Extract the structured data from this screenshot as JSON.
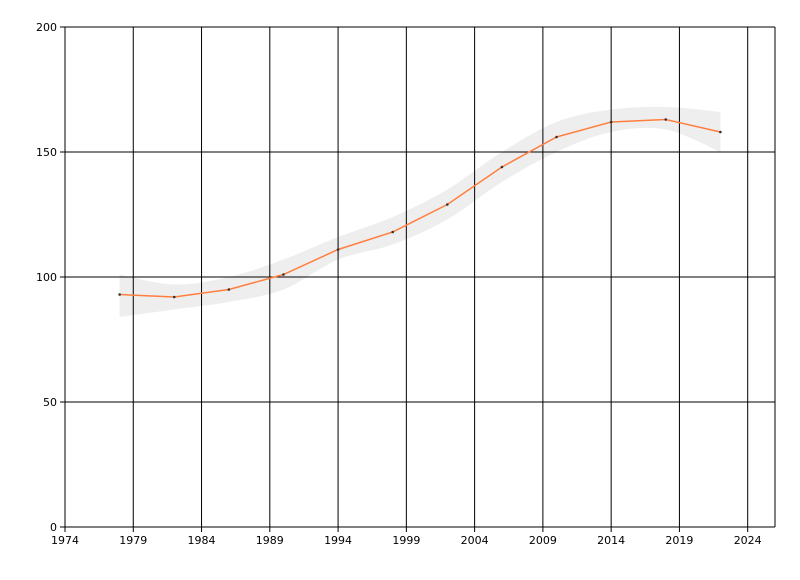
{
  "chart_data": {
    "type": "line",
    "x": [
      1978,
      1982,
      1986,
      1990,
      1994,
      1998,
      2002,
      2006,
      2010,
      2014,
      2018,
      2022
    ],
    "series": [
      {
        "color": "#ff7f3f",
        "values": [
          93,
          92,
          95,
          101,
          111,
          118,
          129,
          144,
          156,
          162,
          163,
          158
        ]
      }
    ],
    "band": {
      "color": "#eeeeee",
      "upper": [
        101,
        97,
        100,
        107,
        116,
        124,
        135,
        150,
        162,
        167,
        168,
        166
      ],
      "lower": [
        84,
        87,
        90,
        95,
        107,
        113,
        123,
        138,
        150,
        158,
        159,
        150
      ]
    },
    "xlim": [
      1974,
      2026
    ],
    "xticks": [
      1974,
      1979,
      1984,
      1989,
      1994,
      1999,
      2004,
      2009,
      2014,
      2019,
      2024
    ],
    "ylim": [
      0,
      200
    ],
    "yticks": [
      0,
      50,
      100,
      150,
      200
    ],
    "grid": true
  }
}
